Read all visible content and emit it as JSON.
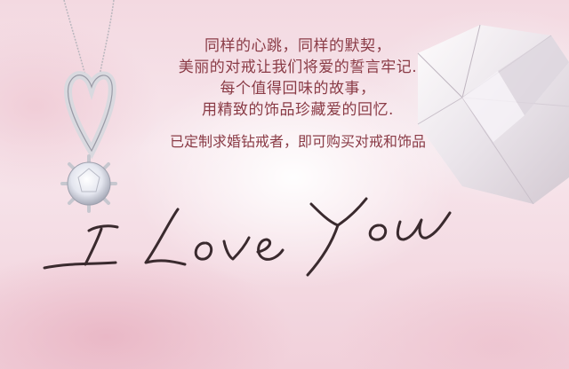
{
  "poem": {
    "line1": "同样的心跳，同样的默契，",
    "line2": "美丽的对戒让我们将爱的誓言牢记.",
    "line3": "每个值得回味的故事，",
    "line4": "用精致的饰品珍藏爱的回忆."
  },
  "cta": {
    "text": "已定制求婚钻戒者，即可购买对戒和饰品"
  },
  "script_text": "I Love You",
  "colors": {
    "text": "#8a3b46",
    "script": "#3a2a2e",
    "background": "#f3d9e1"
  }
}
